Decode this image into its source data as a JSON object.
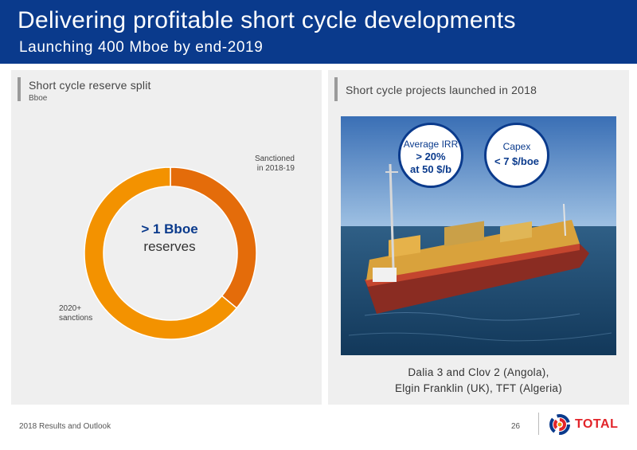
{
  "slide": {
    "title": "Delivering profitable short cycle developments",
    "subtitle": "Launching 400 Mboe by end-2019"
  },
  "left_panel": {
    "heading": "Short cycle reserve split",
    "unit": "Bboe",
    "center_value": "> 1 Bboe",
    "center_label": "reserves"
  },
  "chart_data": {
    "type": "pie",
    "title": "Short cycle reserve split",
    "unit": "Bboe",
    "total_label": "> 1 Bboe reserves",
    "slices": [
      {
        "label": "Sanctioned in 2018-19",
        "label_lines": [
          "Sanctioned",
          "in 2018-19"
        ],
        "value": 0.36,
        "color": "#e46c0a"
      },
      {
        "label": "2020+ sanctions",
        "label_lines": [
          "2020+",
          "sanctions"
        ],
        "value": 0.64,
        "color": "#f39200"
      }
    ]
  },
  "right_panel": {
    "heading": "Short cycle projects launched in 2018",
    "kpis": [
      {
        "name": "Average IRR",
        "value_line1": "> 20%",
        "value_line2": "at 50 $/b"
      },
      {
        "name": "Capex",
        "value_line1": "< 7 $/boe",
        "value_line2": ""
      }
    ],
    "caption_line1": "Dalia 3 and Clov 2 (Angola),",
    "caption_line2": "Elgin Franklin (UK), TFT (Algeria)"
  },
  "footer": {
    "text": "2018 Results and Outlook",
    "page_number": "26",
    "brand": "TOTAL",
    "brand_color": "#e2242a",
    "accent_color": "#0a3a8c"
  }
}
